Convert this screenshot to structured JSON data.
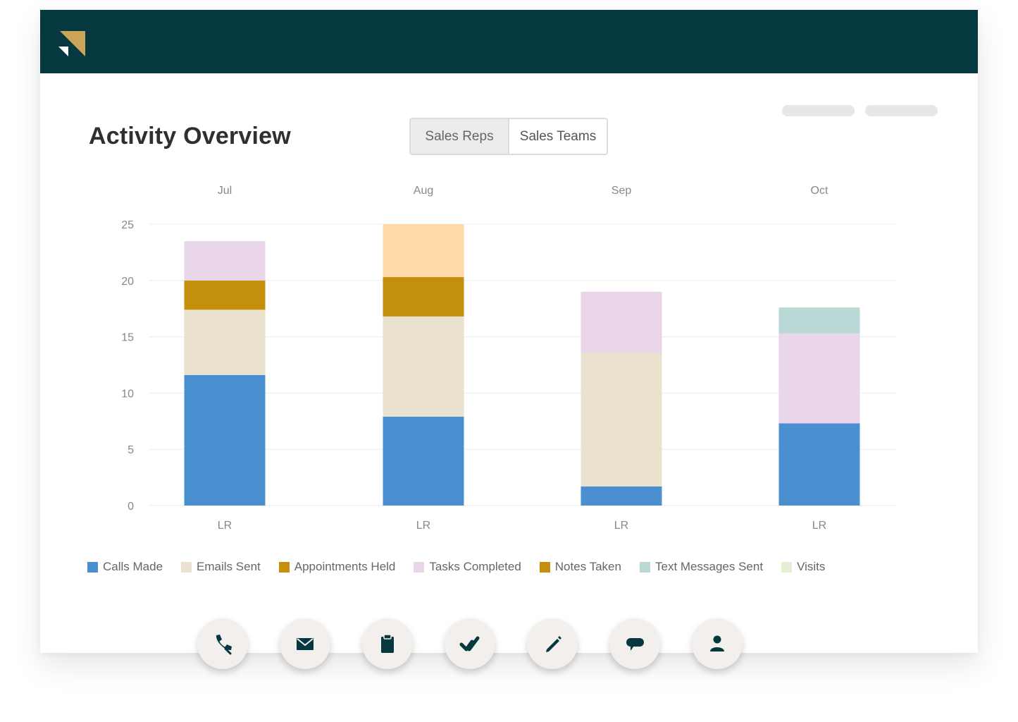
{
  "header": {
    "brand_colors": {
      "bar": "#06383f",
      "logo_gold": "#caa55a"
    }
  },
  "page": {
    "title": "Activity Overview"
  },
  "toggle": {
    "options": [
      {
        "label": "Sales Reps",
        "active": true
      },
      {
        "label": "Sales Teams",
        "active": false
      }
    ]
  },
  "legend": [
    {
      "label": "Calls Made",
      "color": "#4a90d0"
    },
    {
      "label": "Emails Sent",
      "color": "#ebe1cf"
    },
    {
      "label": "Appointments Held",
      "color": "#c48f0a"
    },
    {
      "label": "Tasks Completed",
      "color": "#ead6ea"
    },
    {
      "label": "Notes Taken",
      "color": "#c48f0a"
    },
    {
      "label": "Text Messages Sent",
      "color": "#bad8d6"
    },
    {
      "label": "Visits",
      "color": "#e4f0d3"
    }
  ],
  "chart_data": {
    "type": "bar",
    "stacked": true,
    "months": [
      "Jul",
      "Aug",
      "Sep",
      "Oct"
    ],
    "categories": [
      "LR",
      "LR",
      "LR",
      "LR"
    ],
    "yticks": [
      0,
      5,
      10,
      15,
      20,
      25
    ],
    "ylim": [
      0,
      25
    ],
    "grid": true,
    "legend_position": "bottom",
    "series": [
      {
        "name": "Calls Made",
        "color": "#4a90d0",
        "values": [
          11.6,
          7.9,
          1.7,
          7.3
        ]
      },
      {
        "name": "Emails Sent",
        "color": "#ebe1cf",
        "values": [
          5.8,
          8.9,
          11.9,
          0
        ]
      },
      {
        "name": "Appointments Held",
        "color": "#c48f0a",
        "values": [
          2.6,
          3.5,
          0,
          0
        ]
      },
      {
        "name": "Tasks Completed",
        "color": "#ead6ea",
        "values": [
          3.5,
          0,
          5.4,
          8.0
        ]
      },
      {
        "name": "Text Messages Sent",
        "color": "#bad8d6",
        "values": [
          0,
          0,
          0,
          2.3
        ]
      },
      {
        "name": "",
        "color": "#ffd9a8",
        "values": [
          0,
          4.7,
          0,
          0
        ]
      }
    ]
  },
  "actions": [
    {
      "icon": "phone-icon",
      "name": "call-action-button"
    },
    {
      "icon": "mail-icon",
      "name": "email-action-button"
    },
    {
      "icon": "clipboard-icon",
      "name": "appointment-action-button"
    },
    {
      "icon": "check-icon",
      "name": "task-action-button"
    },
    {
      "icon": "pencil-icon",
      "name": "note-action-button"
    },
    {
      "icon": "chat-icon",
      "name": "text-message-action-button"
    },
    {
      "icon": "person-icon",
      "name": "visit-action-button"
    }
  ]
}
